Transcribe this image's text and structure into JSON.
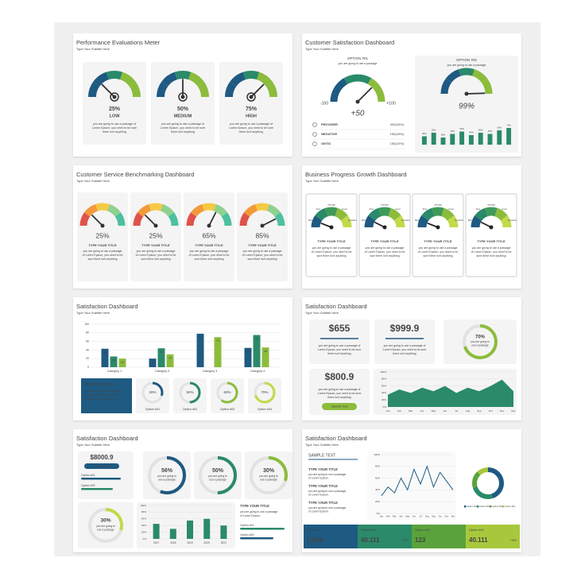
{
  "gauge_range": [
    0,
    100
  ],
  "slides": [
    {
      "title": "Performance Evaluations Meter",
      "subtitle": "Type Your Subtitle Here",
      "gauges": [
        {
          "value": 25,
          "value_label": "25%",
          "level": "LOW",
          "text": [
            "you are going to use a passage of",
            "Lorem Epsum, you need to be sure",
            "there isn't anything"
          ]
        },
        {
          "value": 50,
          "value_label": "50%",
          "level": "MEDIUM",
          "text": [
            "you are going to use a passage of",
            "Lorem Epsum, you need to be sure",
            "there isn't anything"
          ]
        },
        {
          "value": 75,
          "value_label": "75%",
          "level": "HIGH",
          "text": [
            "you are going to use a passage of",
            "Lorem Epsum, you need to be sure",
            "there isn't anything"
          ]
        }
      ]
    },
    {
      "title": "Customer Satisfaction Dashboard",
      "subtitle": "Type Your Subtitle Here",
      "option1": {
        "heading": "OPTION #01",
        "caption": "you are going to use a passage",
        "ticks": [
          -100,
          {
            "value": 100,
            "label": "+100"
          }
        ],
        "value": 50,
        "value_label": "+50",
        "rows": [
          {
            "name": "PROVIDER",
            "value": "300(30%)"
          },
          {
            "name": "NEGATIVE",
            "value": "150(25%)"
          },
          {
            "name": "ONTIC",
            "value": "150(10%)"
          }
        ]
      },
      "option2": {
        "heading": "OPTION #02",
        "caption": "you are going to use a passage",
        "value": 99,
        "value_label": "99%",
        "bars": {
          "ylim": [
            0,
            100
          ],
          "color": "#2a8a6a",
          "values": [
            35,
            50,
            30,
            45,
            55,
            40,
            50,
            45,
            60,
            70
          ],
          "value_labels": [
            "35%",
            "50%",
            "30%",
            "45%",
            "55%",
            "40%",
            "50%",
            "45%",
            "60%",
            "70%"
          ]
        }
      }
    },
    {
      "title": "Customer Service Benchmarking Dashboard",
      "subtitle": "Type Your Subtitle Here",
      "gauges": [
        {
          "value": 25,
          "value_label": "25%",
          "heading": "TYPE YOUR TITLE",
          "text": [
            "you are going to use a passage",
            "of Lorem Epsum, you need to be",
            "sure there isn't anything"
          ]
        },
        {
          "value": 25,
          "value_label": "25%",
          "heading": "TYPE YOUR TITLE",
          "text": [
            "you are going to use a passage",
            "of Lorem Epsum, you need to be",
            "sure there isn't anything"
          ]
        },
        {
          "value": 65,
          "value_label": "65%",
          "heading": "TYPE YOUR TITLE",
          "text": [
            "you are going to use a passage",
            "of Lorem Epsum, you need to be",
            "sure there isn't anything"
          ]
        },
        {
          "value": 85,
          "value_label": "85%",
          "heading": "TYPE YOUR TITLE",
          "text": [
            "you are going to use a passage",
            "of Lorem Epsum, you need to be",
            "sure there isn't anything"
          ]
        }
      ]
    },
    {
      "title": "Business Progress Growth Dashboard",
      "subtitle": "Type Your Subtitle Here",
      "zones": [
        "Bad",
        "Poor",
        "Average",
        "Good",
        "Excellent"
      ],
      "gauges": [
        {
          "value": 12,
          "heading": "TYPE YOUR TITLE",
          "text": [
            "you are going to use a passage",
            "of Lorem Epsum, you need to be",
            "sure there isn't anything"
          ]
        },
        {
          "value": 15,
          "heading": "TYPE YOUR TITLE",
          "text": [
            "you are going to use a passage",
            "of Lorem Epsum, you need to be",
            "sure there isn't anything"
          ]
        },
        {
          "value": 12,
          "heading": "TYPE YOUR TITLE",
          "text": [
            "you are going to use a passage",
            "of Lorem Epsum, you need to be",
            "sure there isn't anything"
          ]
        },
        {
          "value": 15,
          "heading": "TYPE YOUR TITLE",
          "text": [
            "you are going to use a passage",
            "of Lorem Epsum, you need to be",
            "sure there isn't anything"
          ]
        }
      ]
    },
    {
      "title": "Satisfaction Dashboard",
      "subtitle": "Type Your Subtitle Here",
      "chart": {
        "type": "bar",
        "categories": [
          "Category 1",
          "Category 2",
          "Category 3",
          "Category 4"
        ],
        "ylim": [
          0,
          100
        ],
        "yticks": [
          0,
          20,
          40,
          60,
          80,
          100
        ],
        "series": [
          {
            "color": "#1e5a82",
            "values": [
              43,
              20,
              78,
              45
            ]
          },
          {
            "color": "#2a8a6a",
            "values": [
              25,
              44,
              null,
              75
            ]
          },
          {
            "color": "#8cbc3c",
            "values": [
              20,
              30,
              70,
              46
            ]
          }
        ]
      },
      "callout": {
        "heading": "TYPE YOUR TITLE",
        "text": [
          "you are going to use a passage",
          "of Lorem Epsum, you need to",
          "be sure there isn't anything"
        ]
      },
      "donuts": [
        {
          "value": 30,
          "value_label": "30%",
          "label": "Option #01"
        },
        {
          "value": 50,
          "value_label": "50%",
          "label": "Option #02"
        },
        {
          "value": 60,
          "value_label": "60%",
          "label": "Option #03"
        },
        {
          "value": 70,
          "value_label": "70%",
          "label": "Option #04"
        }
      ]
    },
    {
      "title": "Satisfaction Dashboard",
      "subtitle": "Type Your Subtitle Here",
      "cards": [
        {
          "value": "$655",
          "text": [
            "you are going to use a passage of",
            "Lorem Epsum, you need to be sure",
            "there isn't anything"
          ]
        },
        {
          "value": "$999.9",
          "text": [
            "you are going to use a passage of",
            "Lorem Epsum, you need to be sure",
            "there isn't anything"
          ]
        }
      ],
      "donut": {
        "value": 70,
        "value_label": "70%",
        "text": [
          "you are going to",
          "use a passage"
        ]
      },
      "card3": {
        "value": "$800.9",
        "text": [
          "you are going to use a passage of",
          "Lorem Epsum, you need to be sure",
          "there isn't anything"
        ],
        "button": "Sample Text"
      },
      "chart": {
        "type": "area",
        "categories": [
          "Jan",
          "Feb",
          "Mar",
          "Apr",
          "May",
          "Jun",
          "Jul",
          "Aug",
          "Sep",
          "Oct",
          "Nov",
          "Dec"
        ],
        "ylim": [
          0,
          100
        ],
        "yticks": [
          {
            "value": 0,
            "label": "0%"
          },
          {
            "value": 20,
            "label": "20%"
          },
          {
            "value": 40,
            "label": "40%"
          },
          {
            "value": 60,
            "label": "60%"
          },
          {
            "value": 80,
            "label": "80%"
          },
          {
            "value": 100,
            "label": "100%"
          }
        ],
        "color": "#2a8a6a",
        "values": [
          35,
          50,
          40,
          55,
          45,
          60,
          40,
          55,
          45,
          60,
          78,
          45
        ]
      }
    },
    {
      "title": "Satisfaction Dashboard",
      "subtitle": "Type Your Subtitle Here",
      "card": {
        "value": "$8000.9",
        "button": "Sample Text",
        "options": [
          "Option #01",
          "Option #02"
        ]
      },
      "donuts": [
        {
          "value": 56,
          "value_label": "56%",
          "text": [
            "you are going to",
            "use a passage"
          ]
        },
        {
          "value": 50,
          "value_label": "50%",
          "text": [
            "you are going to",
            "use a passage"
          ]
        },
        {
          "value": 30,
          "value_label": "30%",
          "text": [
            "you are going to",
            "use a passage"
          ]
        }
      ],
      "donut2": {
        "value": 30,
        "value_label": "30%",
        "text": [
          "you are going to",
          "use a passage"
        ]
      },
      "chart": {
        "type": "bar",
        "categories": [
          "2017",
          "2018",
          "2019",
          "2020",
          "2021"
        ],
        "ylim": [
          0,
          100
        ],
        "yticks": [
          {
            "value": 0,
            "label": "0%"
          },
          {
            "value": 20,
            "label": "20%"
          },
          {
            "value": 40,
            "label": "40%"
          },
          {
            "value": 60,
            "label": "60%"
          },
          {
            "value": 80,
            "label": "80%"
          },
          {
            "value": 100,
            "label": "100%"
          }
        ],
        "color": "#2a8a6a",
        "values": [
          45,
          30,
          55,
          60,
          40
        ]
      },
      "side": {
        "heading": "TYPE YOUR TITLE",
        "text": [
          "you are going to use a passage",
          "of Lorem Epsum."
        ],
        "options": [
          "Option #01",
          "Option #02"
        ]
      }
    },
    {
      "title": "Satisfaction Dashboard",
      "subtitle": "Type Your Subtitle Here",
      "heading": "SAMPLE TEXT",
      "items": [
        {
          "heading": "TYPE YOUR TITLE",
          "text": [
            "you are going to use a passage",
            "of Lorem Epsum."
          ]
        },
        {
          "heading": "TYPE YOUR TITLE",
          "text": [
            "you are going to use a passage",
            "of Lorem Epsum."
          ]
        },
        {
          "heading": "TYPE YOUR TITLE",
          "text": [
            "you are going to use a passage",
            "of Lorem Epsum."
          ]
        }
      ],
      "chart": {
        "type": "line",
        "categories": [
          "Jan",
          "Feb",
          "Mar",
          "Apr",
          "May",
          "Jun",
          "Jul",
          "Aug",
          "Sep",
          "Oct",
          "Nov",
          "Dec"
        ],
        "ylim": [
          0,
          100
        ],
        "yticks": [
          {
            "value": 0,
            "label": "0%"
          },
          {
            "value": 20,
            "label": "20%"
          },
          {
            "value": 40,
            "label": "40%"
          },
          {
            "value": 60,
            "label": "60%"
          },
          {
            "value": 80,
            "label": "80%"
          },
          {
            "value": 100,
            "label": "100%"
          }
        ],
        "color": "#1e5a82",
        "values": [
          30,
          45,
          35,
          60,
          40,
          75,
          50,
          80,
          45,
          70,
          55,
          40
        ]
      },
      "donut": {
        "series": [
          {
            "name": "Option #01",
            "color": "#1e5a82",
            "value": 45
          },
          {
            "name": "Option #02",
            "color": "#2a8a6a",
            "value": 25
          },
          {
            "name": "Option #03",
            "color": "#5aa33c",
            "value": 18
          },
          {
            "name": "Option #04",
            "color": "#a8c83c",
            "value": 12
          }
        ]
      },
      "tiles": [
        {
          "label": "Option #01",
          "value": "1.589",
          "color": "#1e5a82"
        },
        {
          "label": "Option #02",
          "value": "40.111",
          "change": "+15%",
          "color": "#2a8a6a"
        },
        {
          "label": "Option #03",
          "value": "123",
          "color": "#5aa33c"
        },
        {
          "label": "Option #04",
          "value": "40.111",
          "change": "+15%",
          "color": "#a8c83c"
        }
      ]
    }
  ]
}
